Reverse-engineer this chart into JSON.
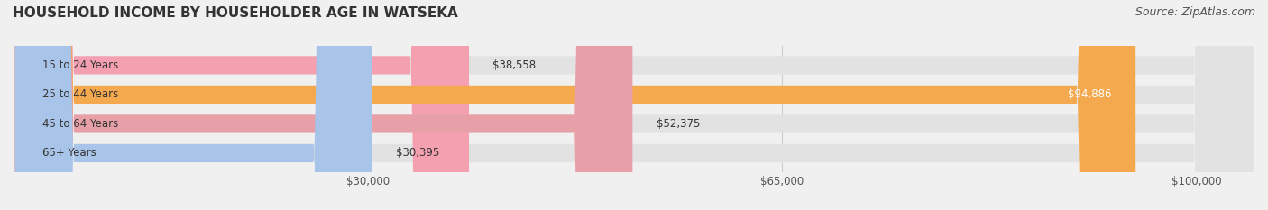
{
  "title": "HOUSEHOLD INCOME BY HOUSEHOLDER AGE IN WATSEKA",
  "source": "Source: ZipAtlas.com",
  "categories": [
    "15 to 24 Years",
    "25 to 44 Years",
    "45 to 64 Years",
    "65+ Years"
  ],
  "values": [
    38558,
    94886,
    52375,
    30395
  ],
  "bar_colors": [
    "#f4a0b0",
    "#f5a94e",
    "#e8a0a8",
    "#a8c4e8"
  ],
  "label_colors": [
    "#333333",
    "#ffffff",
    "#333333",
    "#333333"
  ],
  "x_ticks": [
    30000,
    65000,
    100000
  ],
  "x_tick_labels": [
    "$30,000",
    "$65,000",
    "$100,000"
  ],
  "x_min": 0,
  "x_max": 105000,
  "value_labels": [
    "$38,558",
    "$94,886",
    "$52,375",
    "$30,395"
  ],
  "bg_color": "#f0f0f0",
  "bar_bg_color": "#e2e2e2",
  "title_fontsize": 11,
  "source_fontsize": 9
}
